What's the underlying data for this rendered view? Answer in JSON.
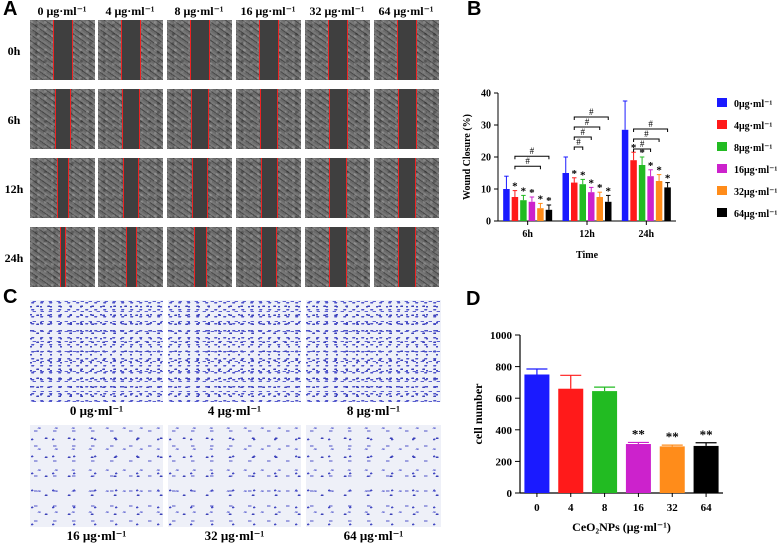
{
  "panels": {
    "a": "A",
    "b": "B",
    "c": "C",
    "d": "D"
  },
  "panel_a": {
    "columns": [
      "0 μg·ml⁻¹",
      "4 μg·ml⁻¹",
      "8 μg·ml⁻¹",
      "16 μg·ml⁻¹",
      "32 μg·ml⁻¹",
      "64 μg·ml⁻¹"
    ],
    "rows": [
      "0h",
      "6h",
      "12h",
      "24h"
    ]
  },
  "panel_c": {
    "labels": [
      "0 μg·ml⁻¹",
      "4 μg·ml⁻¹",
      "8 μg·ml⁻¹",
      "16 μg·ml⁻¹",
      "32 μg·ml⁻¹",
      "64 μg·ml⁻¹"
    ]
  },
  "chart_data": [
    {
      "type": "bar",
      "title": "",
      "xlabel": "Time",
      "ylabel": "Wound Closure (%)",
      "ylim": [
        0,
        40
      ],
      "yticks": [
        "0",
        "10",
        "20",
        "30",
        "40"
      ],
      "categories": [
        "6h",
        "12h",
        "24h"
      ],
      "series": [
        {
          "name": "0μg·ml⁻¹",
          "color": "#1a1aff",
          "values": [
            10,
            15,
            28.5
          ],
          "errors": [
            4,
            5,
            9
          ]
        },
        {
          "name": "4μg·ml⁻¹",
          "color": "#ff1a1a",
          "values": [
            7.5,
            12,
            19
          ],
          "errors": [
            2,
            1.5,
            2.5
          ]
        },
        {
          "name": "8μg·ml⁻¹",
          "color": "#22bb22",
          "values": [
            6.5,
            11.5,
            17.5
          ],
          "errors": [
            1.5,
            1.5,
            2.5
          ]
        },
        {
          "name": "16μg·ml⁻¹",
          "color": "#cc22cc",
          "values": [
            6,
            9,
            14
          ],
          "errors": [
            1.5,
            1.5,
            2
          ]
        },
        {
          "name": "32μg·ml⁻¹",
          "color": "#ff8c1a",
          "values": [
            4,
            7.5,
            12.5
          ],
          "errors": [
            1.5,
            1.5,
            2
          ]
        },
        {
          "name": "64μg·ml⁻¹",
          "color": "#000000",
          "values": [
            3.5,
            6,
            10.5
          ],
          "errors": [
            1.5,
            2,
            1.5
          ]
        }
      ],
      "annotations": [
        "*",
        "#"
      ]
    },
    {
      "type": "bar",
      "title": "",
      "xlabel": "CeO₂NPs (μg·ml⁻¹)",
      "ylabel": "cell number",
      "ylim": [
        0,
        1000
      ],
      "yticks": [
        "0",
        "200",
        "400",
        "600",
        "800",
        "1000"
      ],
      "categories": [
        "0",
        "4",
        "8",
        "16",
        "32",
        "64"
      ],
      "values": [
        750,
        660,
        645,
        310,
        295,
        298
      ],
      "errors": [
        35,
        85,
        25,
        10,
        8,
        20
      ],
      "colors": [
        "#1a1aff",
        "#ff1a1a",
        "#22bb22",
        "#cc22cc",
        "#ff8c1a",
        "#000000"
      ],
      "significance": [
        "",
        "",
        "",
        "**",
        "**",
        "**"
      ]
    }
  ]
}
